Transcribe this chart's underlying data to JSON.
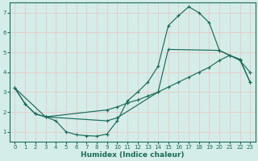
{
  "xlabel": "Humidex (Indice chaleur)",
  "background_color": "#d4ede8",
  "grid_color": "#e8c8c8",
  "line_color": "#1a6b5a",
  "xlim": [
    -0.5,
    23.5
  ],
  "ylim": [
    0.5,
    7.5
  ],
  "xticks": [
    0,
    1,
    2,
    3,
    4,
    5,
    6,
    7,
    8,
    9,
    10,
    11,
    12,
    13,
    14,
    15,
    16,
    17,
    18,
    19,
    20,
    21,
    22,
    23
  ],
  "yticks": [
    1,
    2,
    3,
    4,
    5,
    6,
    7
  ],
  "line1_x": [
    0,
    1,
    2,
    3,
    4,
    5,
    6,
    7,
    8,
    9,
    10,
    11,
    12,
    13,
    14,
    15,
    16,
    17,
    18,
    19,
    20,
    21,
    22,
    23
  ],
  "line1_y": [
    3.2,
    2.4,
    1.9,
    1.75,
    1.55,
    1.0,
    0.85,
    0.8,
    0.78,
    0.88,
    1.55,
    2.55,
    3.0,
    3.5,
    4.3,
    6.35,
    6.85,
    7.3,
    7.0,
    6.5,
    5.1,
    4.85,
    4.6,
    4.0
  ],
  "line2_x": [
    0,
    1,
    2,
    3,
    9,
    10,
    11,
    12,
    13,
    14,
    15,
    16,
    17,
    18,
    19,
    20,
    21,
    22,
    23
  ],
  "line2_y": [
    3.2,
    2.4,
    1.9,
    1.75,
    2.1,
    2.25,
    2.45,
    2.6,
    2.8,
    3.0,
    3.25,
    3.5,
    3.75,
    4.0,
    4.25,
    4.6,
    4.85,
    4.65,
    3.5
  ],
  "line3_x": [
    0,
    3,
    9,
    10,
    14,
    15,
    20,
    21,
    22,
    23
  ],
  "line3_y": [
    3.2,
    1.75,
    1.55,
    1.7,
    3.0,
    5.15,
    5.1,
    4.85,
    4.65,
    3.5
  ]
}
